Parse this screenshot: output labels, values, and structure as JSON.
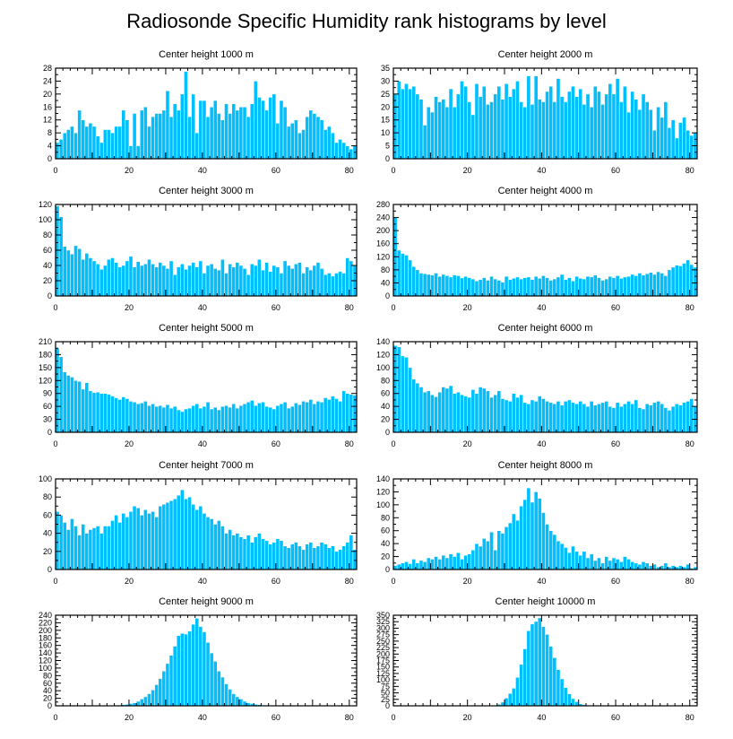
{
  "figure": {
    "title": "Radiosonde Specific Humidity rank histograms by level"
  },
  "colors": {
    "bar": "#00bfff",
    "axis": "#000000"
  },
  "chart_data": [
    {
      "type": "bar",
      "title": "Center height 1000 m",
      "xlim": [
        0,
        82
      ],
      "ylim": [
        0,
        28
      ],
      "xticks": [
        0,
        20,
        40,
        60,
        80
      ],
      "yticks": [
        0,
        4,
        8,
        12,
        16,
        20,
        24,
        28
      ],
      "values": [
        5,
        6,
        8,
        9,
        10,
        8,
        15,
        12,
        10,
        11,
        10,
        7,
        5,
        9,
        9,
        8,
        10,
        10,
        15,
        12,
        4,
        14,
        4,
        15,
        16,
        10,
        13,
        14,
        14,
        15,
        21,
        13,
        17,
        15,
        20,
        27,
        13,
        20,
        8,
        18,
        18,
        13,
        16,
        18,
        14,
        12,
        17,
        14,
        17,
        15,
        16,
        16,
        13,
        17,
        24,
        19,
        18,
        15,
        19,
        20,
        11,
        18,
        16,
        10,
        11,
        12,
        8,
        9,
        13,
        15,
        14,
        13,
        12,
        9,
        10,
        8,
        5,
        6,
        5,
        4,
        3,
        4
      ]
    },
    {
      "type": "bar",
      "title": "Center height 2000 m",
      "xlim": [
        0,
        82
      ],
      "ylim": [
        0,
        35
      ],
      "xticks": [
        0,
        20,
        40,
        60,
        80
      ],
      "yticks": [
        0,
        5,
        10,
        15,
        20,
        25,
        30,
        35
      ],
      "values": [
        25,
        30,
        27,
        29,
        27,
        28,
        25,
        23,
        13,
        20,
        18,
        24,
        22,
        23,
        20,
        27,
        20,
        25,
        30,
        28,
        22,
        17,
        29,
        24,
        28,
        21,
        22,
        25,
        28,
        23,
        29,
        24,
        27,
        30,
        22,
        20,
        32,
        21,
        32,
        23,
        22,
        26,
        28,
        22,
        31,
        24,
        22,
        26,
        28,
        24,
        27,
        21,
        25,
        20,
        28,
        26,
        21,
        25,
        29,
        25,
        31,
        22,
        28,
        18,
        26,
        23,
        19,
        25,
        22,
        19,
        11,
        20,
        16,
        22,
        12,
        15,
        8,
        14,
        16,
        11,
        9,
        10
      ]
    },
    {
      "type": "bar",
      "title": "Center height 3000 m",
      "xlim": [
        0,
        82
      ],
      "ylim": [
        0,
        120
      ],
      "xticks": [
        0,
        20,
        40,
        60,
        80
      ],
      "yticks": [
        0,
        20,
        40,
        60,
        80,
        100,
        120
      ],
      "values": [
        118,
        104,
        65,
        60,
        55,
        66,
        62,
        48,
        56,
        50,
        46,
        42,
        35,
        40,
        48,
        50,
        44,
        38,
        40,
        46,
        52,
        38,
        45,
        40,
        42,
        48,
        42,
        38,
        44,
        40,
        36,
        46,
        28,
        38,
        42,
        35,
        40,
        44,
        38,
        46,
        30,
        40,
        42,
        36,
        34,
        48,
        30,
        42,
        38,
        44,
        40,
        36,
        28,
        42,
        40,
        48,
        34,
        44,
        32,
        40,
        38,
        30,
        46,
        40,
        36,
        42,
        44,
        30,
        38,
        34,
        40,
        44,
        36,
        28,
        30,
        26,
        30,
        32,
        30,
        50,
        46,
        40
      ]
    },
    {
      "type": "bar",
      "title": "Center height 4000 m",
      "xlim": [
        0,
        82
      ],
      "ylim": [
        0,
        280
      ],
      "xticks": [
        0,
        20,
        40,
        60,
        80
      ],
      "yticks": [
        0,
        40,
        80,
        120,
        160,
        200,
        240,
        280
      ],
      "values": [
        240,
        140,
        130,
        125,
        110,
        90,
        80,
        70,
        68,
        66,
        64,
        70,
        60,
        66,
        62,
        58,
        64,
        62,
        55,
        60,
        56,
        52,
        46,
        50,
        56,
        48,
        60,
        52,
        48,
        42,
        60,
        50,
        54,
        58,
        52,
        56,
        58,
        50,
        60,
        54,
        62,
        56,
        48,
        52,
        58,
        66,
        50,
        56,
        46,
        60,
        54,
        52,
        60,
        58,
        64,
        56,
        48,
        52,
        60,
        56,
        62,
        54,
        58,
        60,
        66,
        62,
        70,
        64,
        68,
        72,
        66,
        74,
        70,
        62,
        80,
        88,
        94,
        92,
        100,
        110,
        96,
        88
      ]
    },
    {
      "type": "bar",
      "title": "Center height 5000 m",
      "xlim": [
        0,
        82
      ],
      "ylim": [
        0,
        210
      ],
      "xticks": [
        0,
        20,
        40,
        60,
        80
      ],
      "yticks": [
        0,
        30,
        60,
        90,
        120,
        150,
        180,
        210
      ],
      "values": [
        195,
        175,
        140,
        132,
        128,
        120,
        118,
        100,
        115,
        96,
        92,
        93,
        90,
        90,
        88,
        84,
        80,
        76,
        82,
        78,
        72,
        70,
        66,
        68,
        72,
        62,
        66,
        60,
        62,
        58,
        64,
        56,
        60,
        52,
        48,
        54,
        56,
        62,
        66,
        56,
        60,
        70,
        54,
        58,
        52,
        60,
        62,
        58,
        66,
        56,
        62,
        66,
        70,
        74,
        62,
        68,
        70,
        60,
        58,
        54,
        62,
        66,
        70,
        56,
        60,
        68,
        64,
        72,
        70,
        76,
        66,
        72,
        70,
        80,
        76,
        84,
        78,
        72,
        96,
        90,
        88,
        86
      ]
    },
    {
      "type": "bar",
      "title": "Center height 6000 m",
      "xlim": [
        0,
        82
      ],
      "ylim": [
        0,
        140
      ],
      "xticks": [
        0,
        20,
        40,
        60,
        80
      ],
      "yticks": [
        0,
        20,
        40,
        60,
        80,
        100,
        120,
        140
      ],
      "values": [
        134,
        132,
        118,
        116,
        100,
        82,
        76,
        70,
        62,
        64,
        58,
        55,
        62,
        70,
        68,
        72,
        60,
        62,
        58,
        56,
        54,
        66,
        60,
        70,
        68,
        64,
        54,
        58,
        64,
        52,
        50,
        48,
        60,
        54,
        58,
        46,
        44,
        50,
        48,
        56,
        52,
        48,
        46,
        44,
        48,
        42,
        48,
        50,
        46,
        44,
        48,
        44,
        40,
        48,
        42,
        44,
        46,
        48,
        40,
        38,
        46,
        40,
        44,
        48,
        44,
        50,
        38,
        36,
        44,
        42,
        46,
        48,
        44,
        38,
        34,
        40,
        44,
        42,
        46,
        48,
        52,
        40
      ]
    },
    {
      "type": "bar",
      "title": "Center height 7000 m",
      "xlim": [
        0,
        82
      ],
      "ylim": [
        0,
        100
      ],
      "xticks": [
        0,
        20,
        40,
        60,
        80
      ],
      "yticks": [
        0,
        20,
        40,
        60,
        80,
        100
      ],
      "values": [
        64,
        60,
        52,
        44,
        56,
        48,
        38,
        50,
        40,
        44,
        46,
        48,
        40,
        48,
        48,
        54,
        60,
        52,
        62,
        58,
        64,
        70,
        68,
        60,
        66,
        62,
        64,
        58,
        70,
        72,
        74,
        76,
        78,
        82,
        88,
        78,
        80,
        72,
        66,
        70,
        62,
        58,
        56,
        50,
        54,
        48,
        40,
        44,
        38,
        40,
        36,
        34,
        38,
        30,
        36,
        40,
        34,
        32,
        28,
        30,
        34,
        32,
        26,
        24,
        28,
        30,
        26,
        22,
        28,
        30,
        24,
        26,
        30,
        28,
        24,
        26,
        20,
        22,
        26,
        30,
        38,
        22
      ]
    },
    {
      "type": "bar",
      "title": "Center height 8000 m",
      "xlim": [
        0,
        82
      ],
      "ylim": [
        0,
        140
      ],
      "xticks": [
        0,
        20,
        40,
        60,
        80
      ],
      "yticks": [
        0,
        20,
        40,
        60,
        80,
        100,
        120,
        140
      ],
      "values": [
        6,
        8,
        10,
        12,
        9,
        16,
        10,
        14,
        12,
        18,
        16,
        20,
        16,
        22,
        18,
        24,
        20,
        26,
        16,
        22,
        24,
        30,
        40,
        36,
        48,
        44,
        58,
        30,
        60,
        56,
        66,
        72,
        86,
        76,
        98,
        108,
        126,
        104,
        120,
        110,
        88,
        70,
        60,
        54,
        44,
        40,
        34,
        26,
        36,
        28,
        22,
        28,
        18,
        24,
        14,
        18,
        10,
        20,
        14,
        18,
        16,
        12,
        20,
        16,
        12,
        10,
        8,
        12,
        10,
        6,
        8,
        4,
        6,
        10,
        4,
        6,
        4,
        6,
        4,
        8,
        2,
        4
      ]
    },
    {
      "type": "bar",
      "title": "Center height 9000 m",
      "xlim": [
        0,
        82
      ],
      "ylim": [
        0,
        240
      ],
      "xticks": [
        0,
        20,
        40,
        60,
        80
      ],
      "yticks": [
        0,
        20,
        40,
        60,
        80,
        100,
        120,
        140,
        160,
        180,
        200,
        220,
        240
      ],
      "values": [
        0,
        0,
        0,
        0,
        0,
        0,
        0,
        0,
        0,
        0,
        0,
        0,
        0,
        0,
        0,
        0,
        1,
        2,
        3,
        4,
        6,
        8,
        12,
        18,
        24,
        32,
        42,
        56,
        72,
        92,
        112,
        134,
        158,
        186,
        192,
        190,
        198,
        216,
        232,
        210,
        196,
        168,
        140,
        118,
        92,
        76,
        58,
        44,
        32,
        24,
        18,
        12,
        8,
        6,
        4,
        3,
        2,
        2,
        1,
        1,
        1,
        1,
        0,
        0,
        0,
        0,
        0,
        0,
        0,
        0,
        0,
        0,
        0,
        0,
        0,
        0,
        0,
        0,
        0,
        0,
        0,
        0
      ]
    },
    {
      "type": "bar",
      "title": "Center height 10000 m",
      "xlim": [
        0,
        82
      ],
      "ylim": [
        0,
        350
      ],
      "xticks": [
        0,
        20,
        40,
        60,
        80
      ],
      "yticks": [
        0,
        25,
        50,
        75,
        100,
        125,
        150,
        175,
        200,
        225,
        250,
        275,
        300,
        325,
        350
      ],
      "values": [
        0,
        0,
        0,
        0,
        0,
        0,
        0,
        0,
        0,
        0,
        0,
        0,
        0,
        0,
        0,
        0,
        0,
        0,
        0,
        0,
        0,
        0,
        0,
        0,
        0,
        0,
        0,
        2,
        6,
        14,
        30,
        48,
        68,
        110,
        160,
        220,
        290,
        316,
        326,
        340,
        306,
        276,
        230,
        186,
        140,
        104,
        70,
        46,
        28,
        16,
        8,
        4,
        2,
        1,
        0,
        0,
        0,
        0,
        0,
        0,
        0,
        0,
        0,
        0,
        0,
        0,
        0,
        0,
        0,
        0,
        0,
        0,
        0,
        0,
        0,
        0,
        0,
        0,
        0,
        0,
        0,
        0
      ]
    }
  ]
}
